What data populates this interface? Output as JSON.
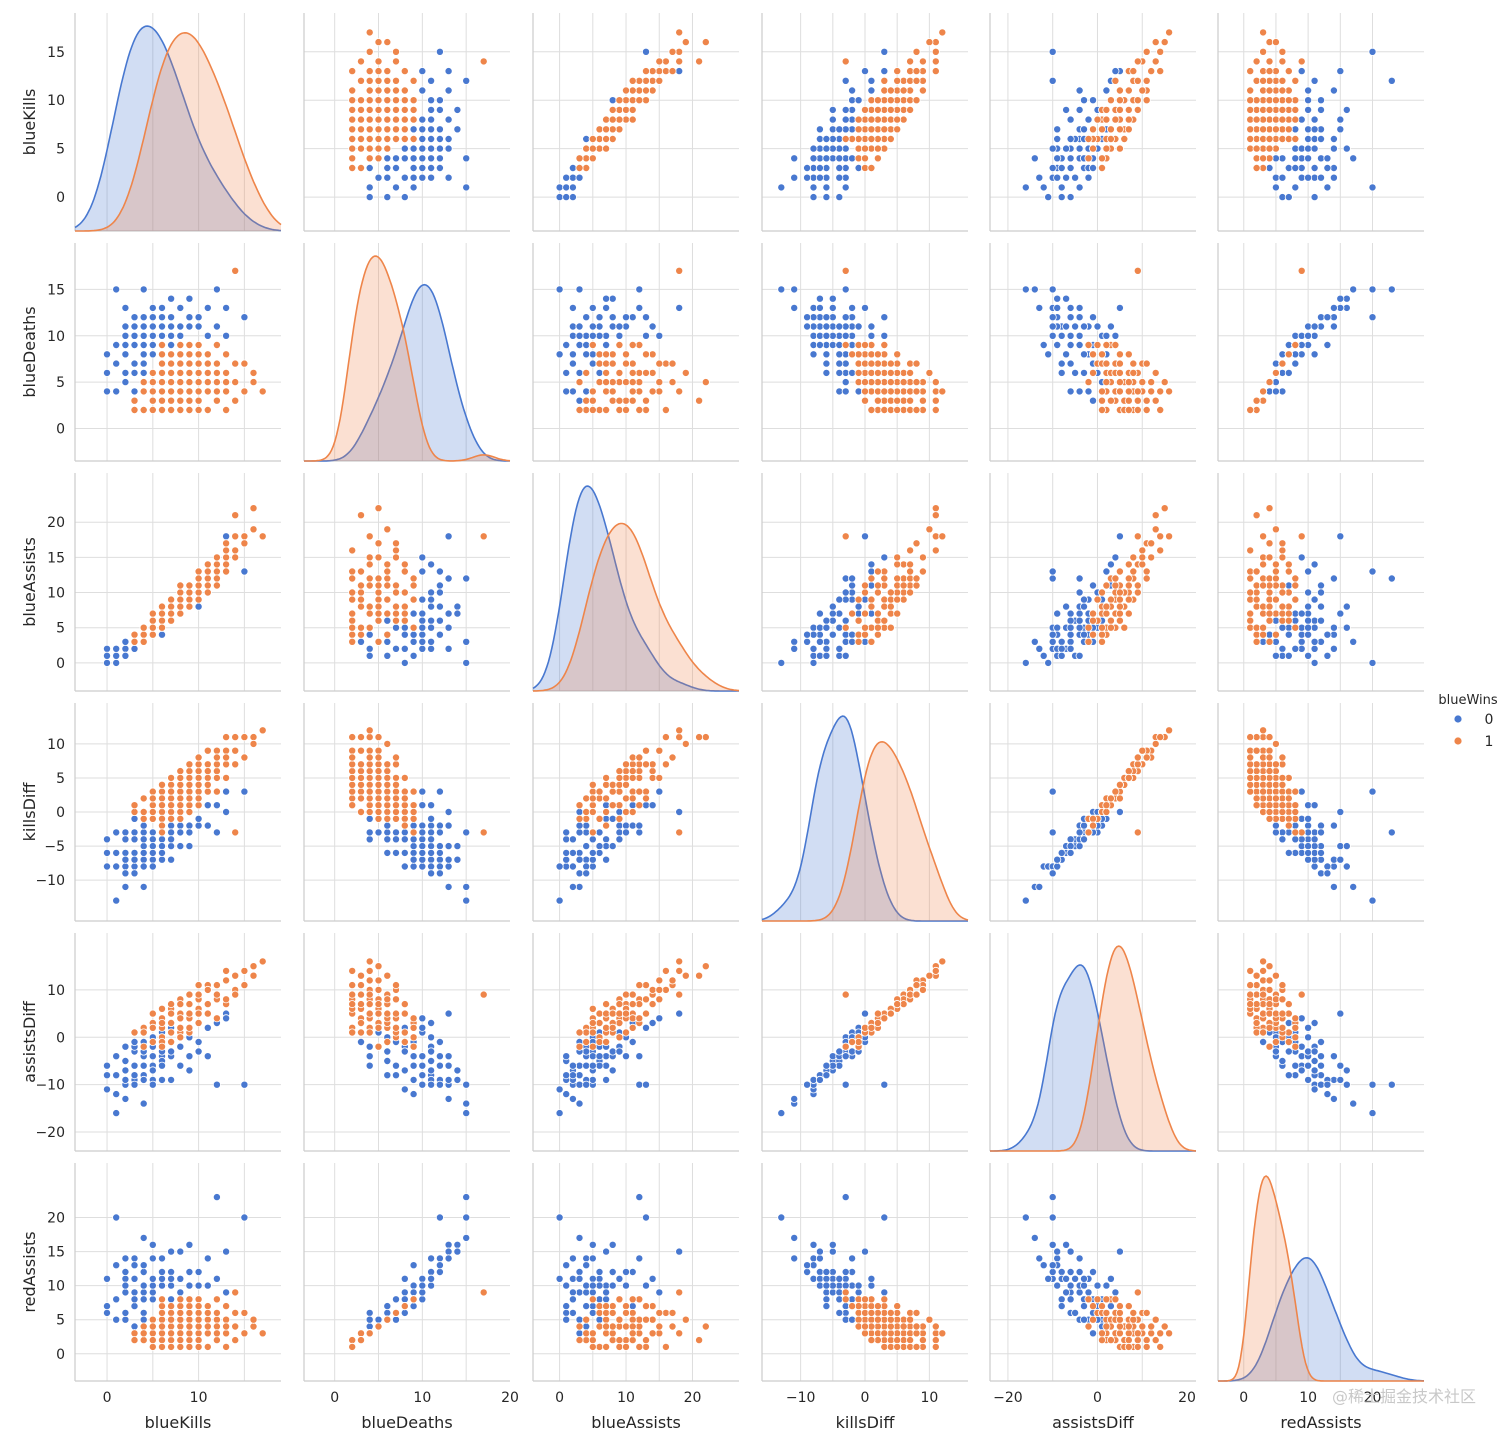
{
  "chart_data": {
    "type": "scatter",
    "title": "",
    "variables": [
      "blueKills",
      "blueDeaths",
      "blueAssists",
      "killsDiff",
      "assistsDiff",
      "redAssists"
    ],
    "ranges": {
      "blueKills": [
        -3.5,
        19
      ],
      "blueDeaths": [
        -3.5,
        20
      ],
      "blueAssists": [
        -4,
        27
      ],
      "killsDiff": [
        -16,
        16
      ],
      "assistsDiff": [
        -24,
        22
      ],
      "redAssists": [
        -4,
        28
      ]
    },
    "ticks": {
      "blueKills": [
        0,
        5,
        10,
        15
      ],
      "blueDeaths": [
        0,
        5,
        10,
        15
      ],
      "blueAssists": [
        0,
        5,
        10,
        15,
        20
      ],
      "killsDiff": [
        -10,
        -5,
        0,
        5,
        10
      ],
      "assistsDiff": [
        -20,
        -10,
        0,
        10
      ],
      "redAssists": [
        0,
        5,
        10,
        15,
        20
      ]
    },
    "xticks": {
      "blueKills": [
        0,
        10
      ],
      "blueDeaths": [
        0,
        10,
        20
      ],
      "blueAssists": [
        0,
        10,
        20
      ],
      "killsDiff": [
        -10,
        0,
        10
      ],
      "assistsDiff": [
        -20,
        0,
        20
      ],
      "redAssists": [
        0,
        10,
        20
      ]
    },
    "hue": {
      "title": "blueWins",
      "levels": [
        {
          "label": "0",
          "color": "#4878d0"
        },
        {
          "label": "1",
          "color": "#ee854a"
        }
      ]
    },
    "diagonal": "kde",
    "grid": true,
    "legend_position": "right",
    "series": [
      {
        "name": "0",
        "color": "#4878d0",
        "points": [
          [
            3,
            9,
            3,
            -6,
            -6,
            9
          ],
          [
            5,
            8,
            6,
            -3,
            -2,
            8
          ],
          [
            2,
            10,
            2,
            -8,
            -10,
            11
          ],
          [
            6,
            9,
            5,
            -3,
            0,
            7
          ],
          [
            4,
            11,
            3,
            -7,
            -8,
            12
          ],
          [
            7,
            8,
            8,
            -1,
            2,
            6
          ],
          [
            1,
            9,
            1,
            -8,
            -12,
            13
          ],
          [
            5,
            12,
            4,
            -7,
            -9,
            14
          ],
          [
            3,
            6,
            4,
            -3,
            -3,
            7
          ],
          [
            6,
            10,
            7,
            -4,
            -4,
            10
          ],
          [
            2,
            8,
            2,
            -6,
            -7,
            9
          ],
          [
            4,
            7,
            5,
            -3,
            -1,
            6
          ],
          [
            8,
            10,
            9,
            -2,
            1,
            8
          ],
          [
            0,
            8,
            0,
            -8,
            -11,
            11
          ],
          [
            5,
            13,
            5,
            -8,
            -10,
            16
          ],
          [
            3,
            11,
            2,
            -8,
            -9,
            14
          ],
          [
            9,
            11,
            10,
            -2,
            0,
            10
          ],
          [
            6,
            7,
            6,
            -1,
            1,
            5
          ],
          [
            2,
            5,
            3,
            -3,
            -2,
            5
          ],
          [
            7,
            12,
            8,
            -5,
            -4,
            12
          ],
          [
            4,
            15,
            3,
            -11,
            -14,
            17
          ],
          [
            1,
            15,
            0,
            -13,
            -16,
            20
          ],
          [
            10,
            9,
            11,
            1,
            3,
            7
          ],
          [
            12,
            15,
            12,
            -3,
            -10,
            23
          ],
          [
            3,
            4,
            4,
            -1,
            -2,
            4
          ],
          [
            5,
            6,
            6,
            -1,
            0,
            5
          ],
          [
            8,
            13,
            7,
            -5,
            -6,
            15
          ],
          [
            2,
            13,
            2,
            -11,
            -13,
            14
          ],
          [
            6,
            11,
            6,
            -5,
            -5,
            11
          ],
          [
            4,
            9,
            4,
            -5,
            -4,
            9
          ],
          [
            9,
            14,
            8,
            -5,
            -7,
            16
          ],
          [
            0,
            4,
            2,
            -4,
            -6,
            6
          ],
          [
            3,
            3,
            3,
            0,
            -1,
            3
          ],
          [
            11,
            10,
            13,
            1,
            2,
            10
          ],
          [
            7,
            9,
            7,
            -2,
            -1,
            8
          ],
          [
            15,
            12,
            13,
            3,
            -10,
            20
          ],
          [
            13,
            13,
            18,
            0,
            5,
            15
          ],
          [
            4,
            8,
            5,
            -4,
            -3,
            8
          ],
          [
            6,
            13,
            5,
            -7,
            -9,
            14
          ],
          [
            2,
            6,
            1,
            -4,
            -5,
            6
          ],
          [
            8,
            11,
            9,
            -3,
            -2,
            11
          ],
          [
            5,
            9,
            5,
            -4,
            -4,
            9
          ],
          [
            1,
            4,
            1,
            -3,
            -4,
            5
          ],
          [
            10,
            12,
            11,
            -2,
            -1,
            12
          ],
          [
            7,
            10,
            6,
            -3,
            -4,
            10
          ],
          [
            3,
            7,
            2,
            -4,
            -6,
            8
          ],
          [
            6,
            5,
            7,
            1,
            1,
            4
          ],
          [
            4,
            12,
            4,
            -8,
            -9,
            13
          ],
          [
            9,
            9,
            9,
            0,
            0,
            8
          ],
          [
            2,
            11,
            3,
            -9,
            -10,
            12
          ],
          [
            12,
            11,
            14,
            1,
            3,
            11
          ],
          [
            5,
            10,
            4,
            -5,
            -6,
            10
          ],
          [
            8,
            7,
            8,
            1,
            1,
            6
          ],
          [
            3,
            10,
            3,
            -7,
            -8,
            11
          ],
          [
            11,
            13,
            12,
            -2,
            -4,
            14
          ],
          [
            6,
            8,
            4,
            -2,
            -3,
            7
          ],
          [
            4,
            6,
            3,
            -2,
            -3,
            5
          ],
          [
            7,
            14,
            7,
            -7,
            -9,
            15
          ],
          [
            1,
            7,
            2,
            -6,
            -8,
            8
          ],
          [
            9,
            12,
            10,
            -3,
            -4,
            12
          ],
          [
            5,
            11,
            5,
            -6,
            -7,
            11
          ],
          [
            2,
            9,
            1,
            -7,
            -9,
            10
          ],
          [
            13,
            10,
            15,
            3,
            4,
            9
          ],
          [
            6,
            12,
            6,
            -6,
            -6,
            12
          ],
          [
            3,
            12,
            4,
            -9,
            -10,
            13
          ],
          [
            8,
            9,
            7,
            -1,
            -2,
            9
          ],
          [
            0,
            6,
            1,
            -6,
            -8,
            7
          ],
          [
            10,
            11,
            8,
            -1,
            -3,
            10
          ],
          [
            4,
            10,
            5,
            -6,
            -6,
            10
          ],
          [
            7,
            11,
            9,
            -4,
            -3,
            11
          ]
        ]
      },
      {
        "name": "1",
        "color": "#ee854a",
        "points": [
          [
            8,
            5,
            9,
            3,
            5,
            4
          ],
          [
            10,
            4,
            12,
            6,
            8,
            3
          ],
          [
            6,
            6,
            7,
            0,
            2,
            5
          ],
          [
            9,
            3,
            10,
            6,
            7,
            2
          ],
          [
            12,
            6,
            14,
            6,
            9,
            5
          ],
          [
            7,
            5,
            6,
            2,
            3,
            4
          ],
          [
            11,
            2,
            13,
            9,
            11,
            1
          ],
          [
            5,
            4,
            5,
            1,
            2,
            3
          ],
          [
            14,
            7,
            16,
            7,
            10,
            6
          ],
          [
            9,
            6,
            9,
            3,
            4,
            5
          ],
          [
            6,
            3,
            5,
            3,
            4,
            2
          ],
          [
            8,
            8,
            10,
            0,
            1,
            7
          ],
          [
            13,
            4,
            15,
            9,
            12,
            3
          ],
          [
            10,
            7,
            11,
            3,
            5,
            6
          ],
          [
            4,
            2,
            4,
            2,
            2,
            2
          ],
          [
            7,
            3,
            8,
            4,
            6,
            2
          ],
          [
            12,
            5,
            12,
            7,
            8,
            4
          ],
          [
            9,
            8,
            8,
            1,
            1,
            7
          ],
          [
            15,
            4,
            18,
            11,
            14,
            3
          ],
          [
            6,
            7,
            6,
            -1,
            0,
            6
          ],
          [
            11,
            6,
            12,
            5,
            7,
            5
          ],
          [
            8,
            2,
            9,
            6,
            8,
            1
          ],
          [
            5,
            6,
            4,
            -1,
            -1,
            5
          ],
          [
            10,
            5,
            10,
            5,
            6,
            4
          ],
          [
            13,
            8,
            14,
            5,
            7,
            7
          ],
          [
            7,
            7,
            7,
            0,
            1,
            6
          ],
          [
            9,
            4,
            11,
            5,
            7,
            3
          ],
          [
            3,
            3,
            4,
            0,
            1,
            3
          ],
          [
            12,
            3,
            13,
            9,
            11,
            2
          ],
          [
            16,
            5,
            22,
            11,
            15,
            4
          ],
          [
            6,
            4,
            7,
            2,
            4,
            3
          ],
          [
            8,
            9,
            9,
            -1,
            0,
            8
          ],
          [
            11,
            4,
            14,
            7,
            10,
            3
          ],
          [
            10,
            9,
            12,
            1,
            3,
            8
          ],
          [
            14,
            5,
            15,
            9,
            10,
            4
          ],
          [
            7,
            6,
            9,
            1,
            3,
            5
          ],
          [
            5,
            2,
            6,
            3,
            5,
            1
          ],
          [
            9,
            7,
            10,
            2,
            4,
            6
          ],
          [
            13,
            6,
            13,
            7,
            8,
            5
          ],
          [
            8,
            4,
            7,
            4,
            5,
            3
          ],
          [
            6,
            2,
            5,
            4,
            6,
            1
          ],
          [
            12,
            7,
            15,
            5,
            8,
            6
          ],
          [
            4,
            5,
            3,
            -1,
            -2,
            4
          ],
          [
            10,
            3,
            11,
            7,
            9,
            2
          ],
          [
            15,
            7,
            17,
            8,
            11,
            6
          ],
          [
            7,
            4,
            8,
            3,
            5,
            3
          ],
          [
            9,
            5,
            8,
            4,
            5,
            4
          ],
          [
            11,
            8,
            13,
            3,
            5,
            7
          ],
          [
            6,
            5,
            8,
            1,
            3,
            4
          ],
          [
            14,
            3,
            21,
            11,
            13,
            2
          ],
          [
            8,
            6,
            11,
            2,
            4,
            5
          ],
          [
            5,
            3,
            5,
            2,
            3,
            2
          ],
          [
            10,
            6,
            9,
            4,
            5,
            5
          ],
          [
            12,
            9,
            12,
            3,
            4,
            8
          ],
          [
            17,
            4,
            18,
            12,
            16,
            3
          ],
          [
            3,
            2,
            3,
            1,
            1,
            2
          ],
          [
            9,
            2,
            10,
            7,
            9,
            1
          ],
          [
            7,
            8,
            6,
            -1,
            -1,
            7
          ],
          [
            11,
            5,
            11,
            6,
            7,
            4
          ],
          [
            13,
            2,
            16,
            11,
            14,
            1
          ],
          [
            14,
            17,
            18,
            -3,
            9,
            9
          ],
          [
            6,
            8,
            7,
            -2,
            -1,
            7
          ],
          [
            8,
            3,
            9,
            5,
            7,
            2
          ],
          [
            10,
            8,
            13,
            2,
            5,
            7
          ],
          [
            4,
            4,
            5,
            0,
            1,
            3
          ],
          [
            12,
            4,
            11,
            8,
            9,
            3
          ],
          [
            9,
            9,
            11,
            0,
            2,
            8
          ],
          [
            5,
            5,
            7,
            0,
            2,
            4
          ],
          [
            16,
            6,
            19,
            10,
            13,
            5
          ],
          [
            7,
            2,
            7,
            5,
            7,
            1
          ],
          [
            11,
            7,
            10,
            4,
            5,
            6
          ],
          [
            8,
            7,
            8,
            1,
            2,
            6
          ],
          [
            13,
            5,
            17,
            8,
            12,
            4
          ],
          [
            6,
            9,
            5,
            -3,
            -2,
            8
          ],
          [
            10,
            2,
            12,
            8,
            11,
            1
          ]
        ]
      }
    ]
  },
  "watermark": "@稀土掘金技术社区"
}
